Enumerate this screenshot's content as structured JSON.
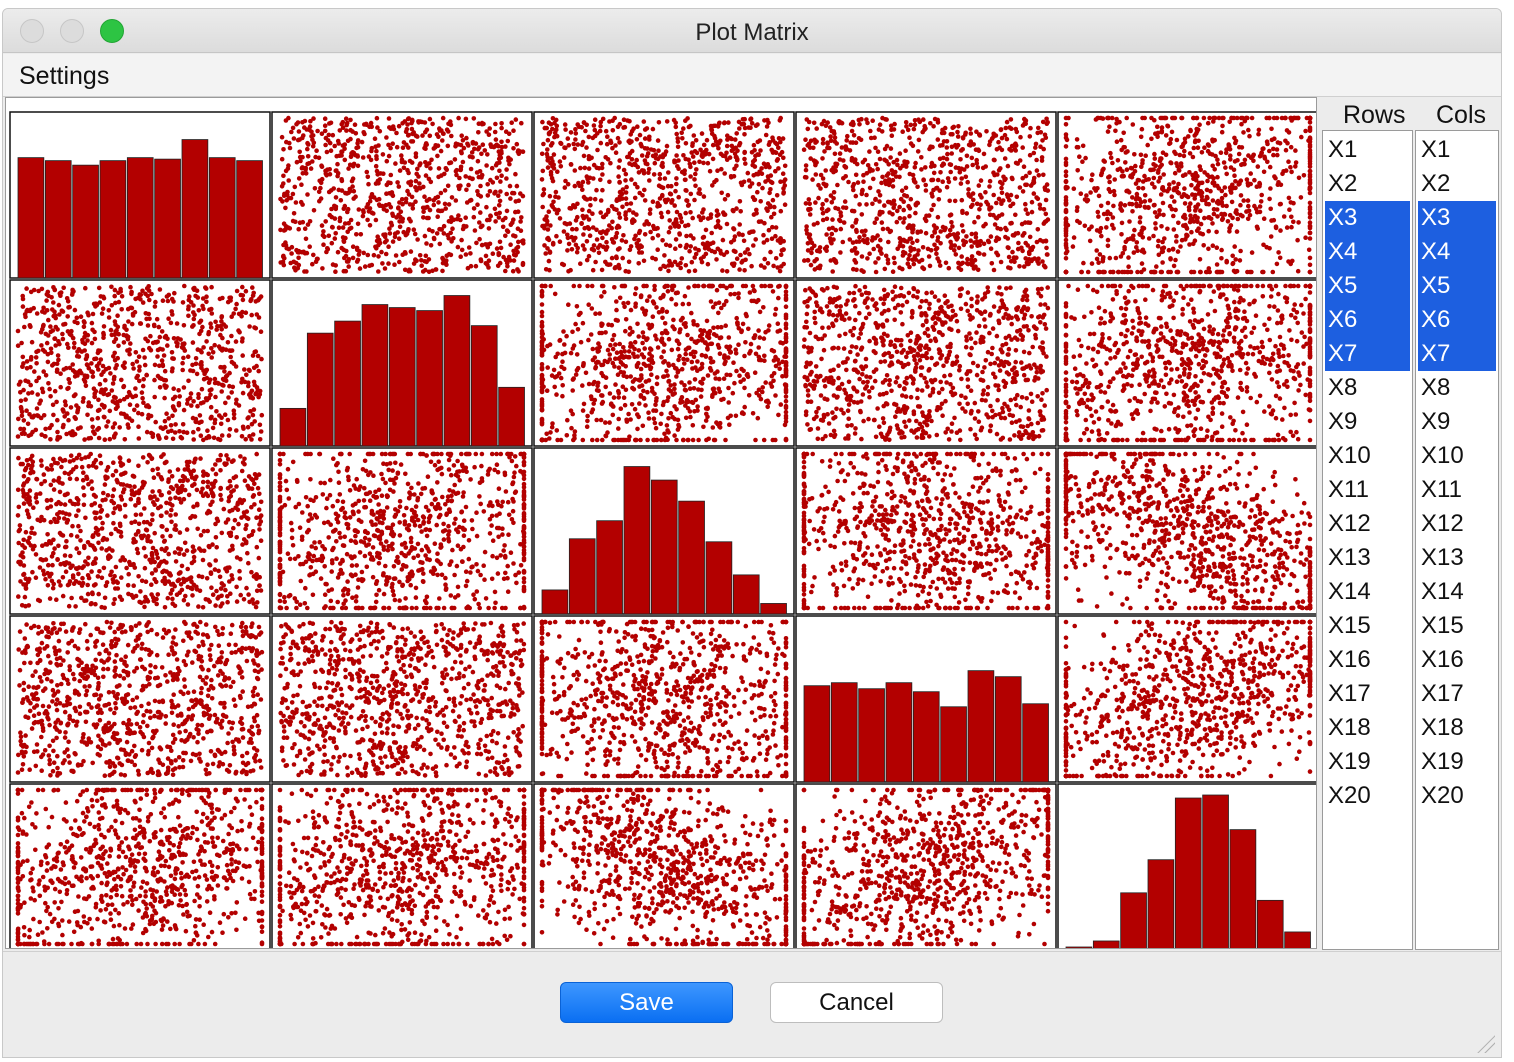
{
  "window": {
    "title": "Plot Matrix"
  },
  "menu": {
    "settings": "Settings"
  },
  "lists": {
    "rows_header": "Rows",
    "cols_header": "Cols",
    "items": [
      "X1",
      "X2",
      "X3",
      "X4",
      "X5",
      "X6",
      "X7",
      "X8",
      "X9",
      "X10",
      "X11",
      "X12",
      "X13",
      "X14",
      "X15",
      "X16",
      "X17",
      "X18",
      "X19",
      "X20"
    ],
    "rows_selected": [
      "X3",
      "X4",
      "X5",
      "X6",
      "X7"
    ],
    "cols_selected": [
      "X3",
      "X4",
      "X5",
      "X6",
      "X7"
    ]
  },
  "buttons": {
    "save": "Save",
    "cancel": "Cancel"
  },
  "colors": {
    "plot_mark": "#b30000",
    "selection": "#1d5fe0",
    "save_button": "#0a6ff2"
  },
  "chart_data": {
    "type": "scatter-matrix",
    "variables": [
      "X3",
      "X4",
      "X5",
      "X6",
      "X7"
    ],
    "histograms": [
      [
        8.0,
        7.8,
        7.5,
        7.8,
        8.0,
        7.9,
        9.2,
        8.0,
        7.8
      ],
      [
        2.5,
        7.5,
        8.3,
        9.4,
        9.2,
        9.0,
        10.0,
        8.0,
        3.9
      ],
      [
        1.6,
        5.0,
        6.2,
        9.8,
        8.9,
        7.5,
        4.8,
        2.6,
        0.7
      ],
      [
        6.4,
        6.6,
        6.2,
        6.6,
        6.0,
        5.0,
        7.4,
        7.0,
        5.2
      ],
      [
        0.2,
        0.6,
        3.8,
        6.0,
        10.1,
        10.3,
        8.0,
        3.3,
        1.2
      ]
    ],
    "correlations": [
      [
        1.0,
        0.0,
        0.0,
        0.0,
        0.2
      ],
      [
        0.0,
        1.0,
        0.1,
        0.0,
        0.2
      ],
      [
        0.0,
        0.1,
        1.0,
        -0.1,
        -0.5
      ],
      [
        0.0,
        0.0,
        -0.1,
        1.0,
        0.4
      ],
      [
        0.2,
        0.2,
        -0.5,
        0.4,
        1.0
      ]
    ],
    "points_per_panel": 900
  }
}
